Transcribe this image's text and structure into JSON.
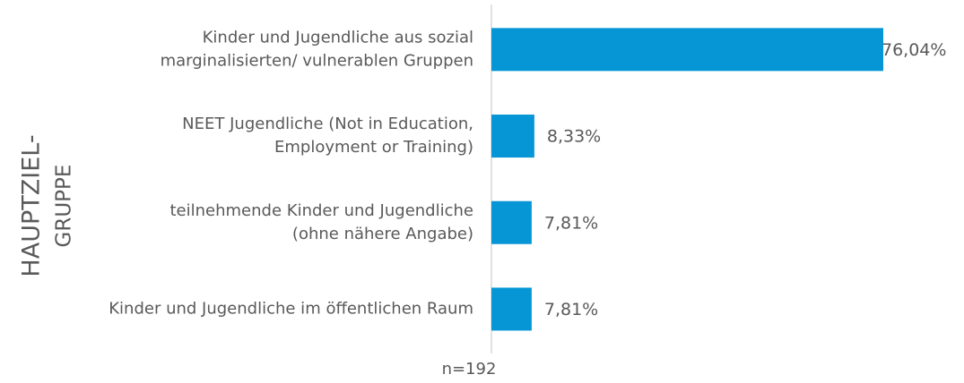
{
  "chart_data": {
    "type": "bar",
    "orientation": "horizontal",
    "y_label": [
      "HAUPTZIEL-",
      "GRUPPE"
    ],
    "categories": [
      [
        "Kinder und Jugendliche aus sozial",
        "marginalisierten/ vulnerablen Gruppen"
      ],
      [
        "NEET Jugendliche (Not in Education,",
        "Employment or Training)"
      ],
      [
        "teilnehmende Kinder und Jugendliche",
        "(ohne nähere Angabe)"
      ],
      [
        "Kinder und Jugendliche im öffentlichen Raum"
      ]
    ],
    "values": [
      76.04,
      8.33,
      7.81,
      7.81
    ],
    "value_labels": [
      "76,04%",
      "8,33%",
      "7,81%",
      "7,81%"
    ],
    "color": "#0696d5",
    "note": "n=192"
  }
}
